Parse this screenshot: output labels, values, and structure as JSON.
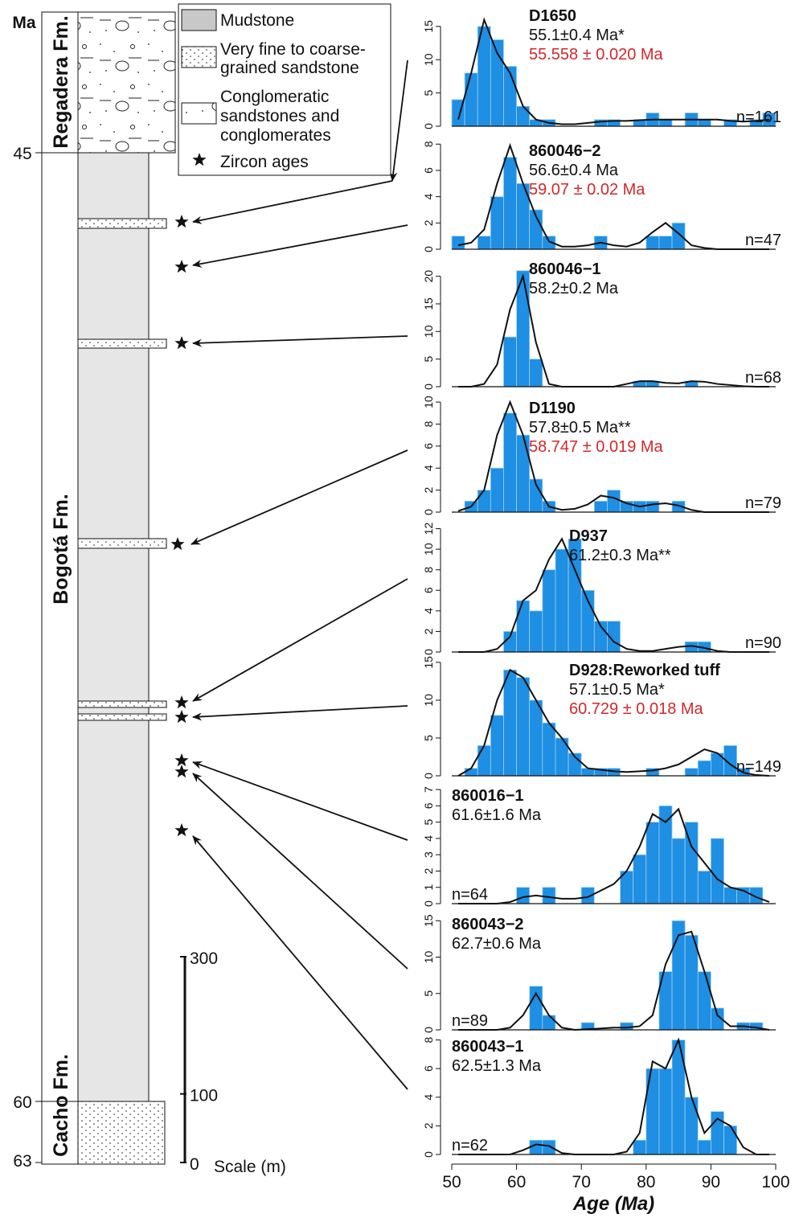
{
  "column": {
    "axis_title": "Ma",
    "ticks": [
      45,
      60,
      63
    ],
    "formations": [
      "Regadera Fm.",
      "Bogotá Fm.",
      "Cacho Fm."
    ],
    "legend": [
      {
        "lines": [
          "Mudstone"
        ]
      },
      {
        "lines": [
          "Very fine to coarse-",
          "grained sandstone"
        ]
      },
      {
        "lines": [
          "Conglomeratic",
          "sandstones and",
          "conglomerates"
        ]
      },
      {
        "lines": [
          "Zircon ages"
        ]
      }
    ],
    "scale": {
      "ticks": [
        0,
        100,
        300
      ],
      "label": "Scale (m)"
    }
  },
  "chart_data": [
    {
      "type": "histogram",
      "title": "D1650",
      "subtitle": "55.1±0.4 Ma*",
      "annotation": "55.558 ± 0.020 Ma",
      "n_label": "n=161",
      "color": "#1e8fe3",
      "xlim": [
        50,
        100
      ],
      "ylim": [
        0,
        18
      ],
      "yticks": [
        0,
        5,
        10,
        15
      ],
      "bins": [
        50,
        52,
        54,
        56,
        58,
        60,
        62,
        64,
        66,
        68,
        70,
        72,
        74,
        76,
        78,
        80,
        82,
        84,
        86,
        88,
        90,
        92,
        94,
        96,
        98,
        100
      ],
      "counts": [
        4,
        8,
        15,
        13,
        9,
        3,
        1,
        1,
        0,
        0,
        0,
        1,
        1,
        0,
        1,
        2,
        1,
        0,
        2,
        1,
        0,
        1,
        0,
        1,
        2
      ],
      "kde": {
        "x": [
          51,
          53,
          55,
          57,
          59,
          61,
          63,
          65,
          67,
          69,
          71,
          73,
          75,
          77,
          79,
          81,
          83,
          85,
          87,
          89,
          91,
          93,
          95,
          97,
          99
        ],
        "values": [
          1,
          8,
          16,
          11,
          8,
          3,
          1,
          0.5,
          0.3,
          0.3,
          0.5,
          0.7,
          0.8,
          0.8,
          0.9,
          1,
          1,
          1,
          1,
          1,
          1,
          0.8,
          0.7,
          0.8,
          1
        ]
      }
    },
    {
      "type": "histogram",
      "title": "860046−2",
      "subtitle": "56.6±0.4 Ma",
      "annotation": "59.07 ± 0.02 Ma",
      "n_label": "n=47",
      "color": "#1e8fe3",
      "xlim": [
        50,
        100
      ],
      "ylim": [
        0,
        8.2
      ],
      "yticks": [
        0,
        2,
        4,
        6,
        8
      ],
      "bins": [
        50,
        52,
        54,
        56,
        58,
        60,
        62,
        64,
        66,
        68,
        70,
        72,
        74,
        76,
        78,
        80,
        82,
        84,
        86,
        88,
        90,
        92,
        94,
        96,
        98,
        100
      ],
      "counts": [
        1,
        0,
        1,
        4,
        7,
        5,
        3,
        1,
        0,
        0,
        0,
        1,
        0,
        0,
        0,
        1,
        1,
        2,
        0,
        0,
        0,
        0,
        0,
        0,
        0
      ],
      "kde": {
        "x": [
          51,
          53,
          55,
          57,
          59,
          61,
          63,
          65,
          67,
          69,
          71,
          73,
          75,
          77,
          79,
          81,
          83,
          85,
          87,
          89,
          91,
          93,
          95,
          97,
          99
        ],
        "values": [
          0.3,
          0.5,
          1.5,
          5,
          7.9,
          5,
          2.5,
          0.6,
          0.2,
          0.2,
          0.3,
          0.5,
          0.3,
          0.2,
          0.5,
          1.3,
          2,
          1.2,
          0.3,
          0.1,
          0,
          0,
          0,
          0,
          0
        ]
      }
    },
    {
      "type": "histogram",
      "title": "860046−1",
      "subtitle": "58.2±0.2 Ma",
      "n_label": "n=68",
      "color": "#1e8fe3",
      "xlim": [
        50,
        100
      ],
      "ylim": [
        0,
        23
      ],
      "yticks": [
        0,
        5,
        10,
        15,
        20
      ],
      "bins": [
        50,
        52,
        54,
        56,
        58,
        60,
        62,
        64,
        66,
        68,
        70,
        72,
        74,
        76,
        78,
        80,
        82,
        84,
        86,
        88,
        90,
        92,
        94,
        96,
        98,
        100
      ],
      "counts": [
        0,
        0,
        0,
        0,
        9,
        21,
        5,
        0,
        0,
        0,
        0,
        0,
        0,
        0,
        1,
        1,
        0,
        0,
        1,
        0,
        0,
        0,
        0,
        0,
        0
      ],
      "kde": {
        "x": [
          51,
          53,
          55,
          57,
          59,
          61,
          63,
          65,
          67,
          69,
          71,
          73,
          75,
          77,
          79,
          81,
          83,
          85,
          87,
          89,
          91,
          93,
          95,
          97,
          99
        ],
        "values": [
          0,
          0,
          0.5,
          4,
          14,
          20,
          8,
          0.5,
          0,
          0,
          0,
          0,
          0,
          0.5,
          1,
          1,
          0.7,
          0.6,
          1,
          0.9,
          0.5,
          0.3,
          0.1,
          0,
          0
        ]
      }
    },
    {
      "type": "histogram",
      "title": "D1190",
      "subtitle": "57.8±0.5 Ma**",
      "annotation": "58.747 ± 0.019 Ma",
      "n_label": "n=79",
      "color": "#1e8fe3",
      "xlim": [
        50,
        100
      ],
      "ylim": [
        0,
        10.3
      ],
      "yticks": [
        0,
        2,
        4,
        6,
        8,
        10
      ],
      "bins": [
        50,
        52,
        54,
        56,
        58,
        60,
        62,
        64,
        66,
        68,
        70,
        72,
        74,
        76,
        78,
        80,
        82,
        84,
        86,
        88,
        90,
        92,
        94,
        96,
        98,
        100
      ],
      "counts": [
        0,
        1,
        2,
        4,
        9,
        7,
        3,
        1,
        0,
        0,
        0,
        1,
        2,
        1,
        1,
        1,
        0,
        1,
        0,
        0,
        0,
        0,
        0,
        0,
        0
      ],
      "kde": {
        "x": [
          51,
          53,
          55,
          57,
          59,
          61,
          63,
          65,
          67,
          69,
          71,
          73,
          75,
          77,
          79,
          81,
          83,
          85,
          87,
          89,
          91,
          93,
          95,
          97,
          99
        ],
        "values": [
          0.1,
          0.5,
          2,
          7,
          10,
          7,
          2.5,
          0.5,
          0.2,
          0.3,
          0.7,
          1.5,
          1.3,
          0.8,
          0.5,
          0.7,
          0.8,
          0.6,
          0.2,
          0,
          0,
          0,
          0,
          0,
          0
        ]
      }
    },
    {
      "type": "histogram",
      "title": "D937",
      "subtitle": "61.2±0.3 Ma**",
      "n_label": "n=90",
      "color": "#1e8fe3",
      "xlim": [
        50,
        100
      ],
      "ylim": [
        0,
        12.2
      ],
      "yticks": [
        0,
        2,
        4,
        6,
        8,
        10,
        12
      ],
      "bins": [
        50,
        52,
        54,
        56,
        58,
        60,
        62,
        64,
        66,
        68,
        70,
        72,
        74,
        76,
        78,
        80,
        82,
        84,
        86,
        88,
        90,
        92,
        94,
        96,
        98,
        100
      ],
      "counts": [
        0,
        0,
        0,
        0,
        2,
        5,
        4,
        8,
        10,
        11,
        6,
        3,
        3,
        0,
        0,
        0,
        0,
        0,
        1,
        1,
        0,
        0,
        0,
        0,
        0
      ],
      "kde": {
        "x": [
          51,
          53,
          55,
          57,
          59,
          61,
          63,
          65,
          67,
          69,
          71,
          73,
          75,
          77,
          79,
          81,
          83,
          85,
          87,
          89,
          91,
          93,
          95,
          97,
          99
        ],
        "values": [
          0,
          0,
          0,
          0.3,
          1.5,
          5,
          6,
          9,
          11,
          8,
          5,
          2.5,
          1,
          0.3,
          0.1,
          0.1,
          0.3,
          0.5,
          0.6,
          0.4,
          0.1,
          0,
          0,
          0,
          0
        ]
      }
    },
    {
      "type": "histogram",
      "title": "D928:Reworked tuff",
      "subtitle": "57.1±0.5 Ma*",
      "annotation": "60.729 ± 0.018 Ma",
      "n_label": "n=149",
      "color": "#1e8fe3",
      "xlim": [
        50,
        100
      ],
      "ylim": [
        0,
        15.2
      ],
      "yticks": [
        0,
        5,
        10,
        15
      ],
      "bins": [
        50,
        52,
        54,
        56,
        58,
        60,
        62,
        64,
        66,
        68,
        70,
        72,
        74,
        76,
        78,
        80,
        82,
        84,
        86,
        88,
        90,
        92,
        94,
        96,
        98,
        100
      ],
      "counts": [
        0,
        1,
        4,
        8,
        14,
        13,
        10,
        7,
        5,
        3,
        1,
        1,
        1,
        0,
        0,
        1,
        0,
        0,
        1,
        2,
        3,
        4,
        1,
        0,
        0
      ],
      "kde": {
        "x": [
          51,
          53,
          55,
          57,
          59,
          61,
          63,
          65,
          67,
          69,
          71,
          73,
          75,
          77,
          79,
          81,
          83,
          85,
          87,
          89,
          91,
          93,
          95,
          97,
          99
        ],
        "values": [
          0,
          1,
          4,
          10,
          14,
          13,
          10,
          7,
          5,
          2.5,
          1,
          0.8,
          0.6,
          0.5,
          0.6,
          0.7,
          1,
          1.5,
          2.5,
          3.5,
          3,
          1.5,
          0.4,
          0.1,
          0
        ]
      }
    },
    {
      "type": "histogram",
      "title": "860016−1",
      "subtitle": "61.6±1.6 Ma",
      "n_label": "n=64",
      "color": "#1e8fe3",
      "xlim": [
        50,
        100
      ],
      "ylim": [
        0,
        7.2
      ],
      "yticks": [
        0,
        1,
        2,
        3,
        4,
        5,
        6,
        7
      ],
      "bins": [
        50,
        52,
        54,
        56,
        58,
        60,
        62,
        64,
        66,
        68,
        70,
        72,
        74,
        76,
        78,
        80,
        82,
        84,
        86,
        88,
        90,
        92,
        94,
        96,
        98,
        100
      ],
      "counts": [
        0,
        0,
        0,
        0,
        0,
        1,
        0,
        1,
        0,
        0,
        1,
        0,
        0,
        2,
        3,
        5,
        6,
        4,
        5,
        2,
        4,
        1,
        1,
        1,
        0
      ],
      "kde": {
        "x": [
          51,
          53,
          55,
          57,
          59,
          61,
          63,
          65,
          67,
          69,
          71,
          73,
          75,
          77,
          79,
          81,
          83,
          85,
          87,
          89,
          91,
          93,
          95,
          97,
          99
        ],
        "values": [
          0,
          0,
          0,
          0,
          0.1,
          0.4,
          0.5,
          0.4,
          0.3,
          0.3,
          0.4,
          0.8,
          1.2,
          2,
          3.5,
          5.5,
          5,
          5.8,
          3.5,
          2.5,
          1.5,
          1,
          0.8,
          0.4,
          0.1
        ]
      }
    },
    {
      "type": "histogram",
      "title": "860043−2",
      "subtitle": "62.7±0.6 Ma",
      "n_label": "n=89",
      "color": "#1e8fe3",
      "xlim": [
        50,
        100
      ],
      "ylim": [
        0,
        15.8
      ],
      "yticks": [
        0,
        5,
        10,
        15
      ],
      "bins": [
        50,
        52,
        54,
        56,
        58,
        60,
        62,
        64,
        66,
        68,
        70,
        72,
        74,
        76,
        78,
        80,
        82,
        84,
        86,
        88,
        90,
        92,
        94,
        96,
        98,
        100
      ],
      "counts": [
        0,
        0,
        0,
        0,
        0,
        0,
        6,
        2,
        0,
        0,
        1,
        0,
        0,
        1,
        0,
        0,
        8,
        15,
        13,
        8,
        3,
        0,
        1,
        1,
        0
      ],
      "kde": {
        "x": [
          51,
          53,
          55,
          57,
          59,
          61,
          63,
          65,
          67,
          69,
          71,
          73,
          75,
          77,
          79,
          81,
          83,
          85,
          87,
          89,
          91,
          93,
          95,
          97,
          99
        ],
        "values": [
          0,
          0,
          0,
          0,
          0.3,
          2,
          5,
          2,
          0.3,
          0,
          0.1,
          0.2,
          0.3,
          0.3,
          0.5,
          2,
          9,
          13,
          13.5,
          8,
          2,
          0.5,
          0.5,
          0.3,
          0
        ]
      }
    },
    {
      "type": "histogram",
      "title": "860043−1",
      "subtitle": "62.5±1.3 Ma",
      "n_label": "n=62",
      "color": "#1e8fe3",
      "xlim": [
        50,
        100
      ],
      "ylim": [
        0,
        8.2
      ],
      "yticks": [
        0,
        2,
        4,
        6,
        8
      ],
      "xticks": [
        50,
        60,
        70,
        80,
        90,
        100
      ],
      "xlabel": "Age (Ma)",
      "bins": [
        50,
        52,
        54,
        56,
        58,
        60,
        62,
        64,
        66,
        68,
        70,
        72,
        74,
        76,
        78,
        80,
        82,
        84,
        86,
        88,
        90,
        92,
        94,
        96,
        98,
        100
      ],
      "counts": [
        0,
        0,
        0,
        0,
        0,
        0,
        1,
        1,
        0,
        0,
        0,
        0,
        0,
        0,
        1,
        6,
        6,
        8,
        4,
        1,
        3,
        2,
        0,
        0,
        0
      ],
      "kde": {
        "x": [
          51,
          53,
          55,
          57,
          59,
          61,
          63,
          65,
          67,
          69,
          71,
          73,
          75,
          77,
          79,
          81,
          83,
          85,
          87,
          89,
          91,
          93,
          95,
          97,
          99
        ],
        "values": [
          0,
          0,
          0,
          0,
          0,
          0.3,
          0.7,
          0.6,
          0.1,
          0,
          0,
          0,
          0,
          0.2,
          1.5,
          6.5,
          6,
          8,
          4,
          1.5,
          2.5,
          2,
          0.5,
          0,
          0
        ]
      }
    }
  ]
}
